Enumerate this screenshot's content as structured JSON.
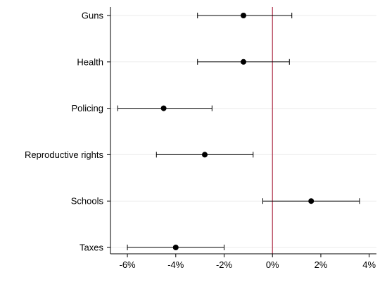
{
  "chart_data": {
    "type": "scatter",
    "title": "",
    "xlabel": "",
    "ylabel": "",
    "categories": [
      "Guns",
      "Health",
      "Policing",
      "Reproductive rights",
      "Schools",
      "Taxes"
    ],
    "series": [
      {
        "points": [
          {
            "category": "Guns",
            "estimate": -1.2,
            "ci_low": -3.1,
            "ci_high": 0.8
          },
          {
            "category": "Health",
            "estimate": -1.2,
            "ci_low": -3.1,
            "ci_high": 0.7
          },
          {
            "category": "Policing",
            "estimate": -4.5,
            "ci_low": -6.4,
            "ci_high": -2.5
          },
          {
            "category": "Reproductive rights",
            "estimate": -2.8,
            "ci_low": -4.8,
            "ci_high": -0.8
          },
          {
            "category": "Schools",
            "estimate": 1.6,
            "ci_low": -0.4,
            "ci_high": 3.6
          },
          {
            "category": "Taxes",
            "estimate": -4.0,
            "ci_low": -6.0,
            "ci_high": -2.0
          }
        ]
      }
    ],
    "xlim": [
      -6.7,
      4.3
    ],
    "xticks": [
      -6,
      -4,
      -2,
      0,
      2,
      4
    ],
    "xtick_labels": [
      "-6%",
      "-4%",
      "-2%",
      "0%",
      "2%",
      "4%"
    ],
    "reference_line": {
      "x": 0,
      "color": "#b0354d"
    },
    "grid": "horizontal",
    "colors": {
      "points": "#000000",
      "grid": "#ebebeb",
      "axis": "#000000"
    }
  }
}
